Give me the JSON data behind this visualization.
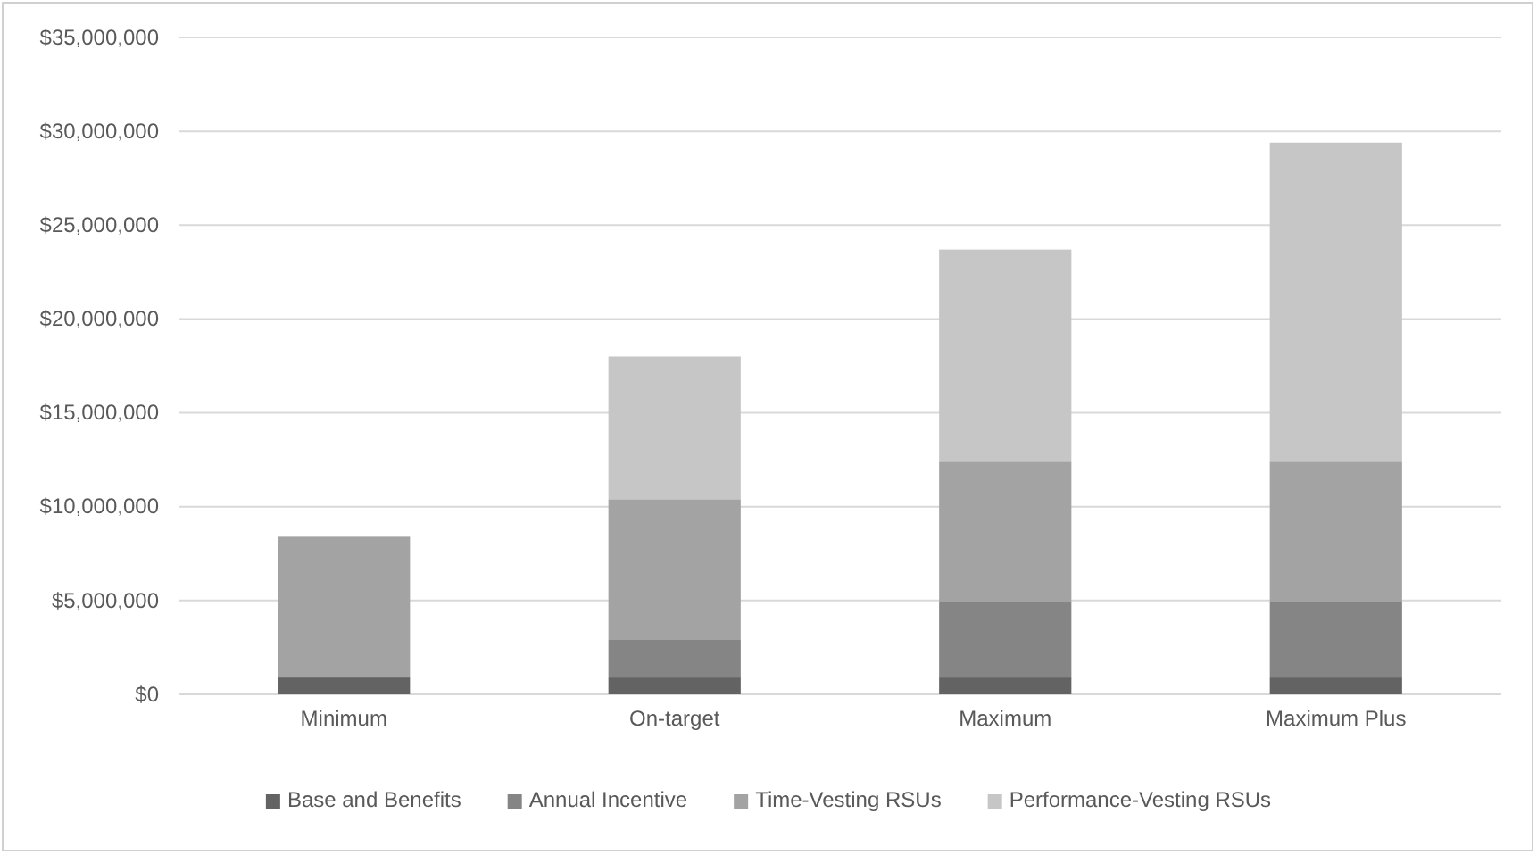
{
  "chart_data": {
    "type": "bar",
    "stacked": true,
    "categories": [
      "Minimum",
      "On-target",
      "Maximum",
      "Maximum Plus"
    ],
    "series": [
      {
        "name": "Base and Benefits",
        "color": "#636363",
        "values": [
          900000,
          900000,
          900000,
          900000
        ]
      },
      {
        "name": "Annual Incentive",
        "color": "#858585",
        "values": [
          0,
          2000000,
          4000000,
          4000000
        ]
      },
      {
        "name": "Time-Vesting RSUs",
        "color": "#a3a3a3",
        "values": [
          7500000,
          7500000,
          7500000,
          7500000
        ]
      },
      {
        "name": "Performance-Vesting RSUs",
        "color": "#c6c6c6",
        "values": [
          0,
          7600000,
          11300000,
          17000000
        ]
      }
    ],
    "ylim": [
      0,
      35000000
    ],
    "yticks": [
      {
        "value": 0,
        "label": "$0"
      },
      {
        "value": 5000000,
        "label": "$5,000,000"
      },
      {
        "value": 10000000,
        "label": "$10,000,000"
      },
      {
        "value": 15000000,
        "label": "$15,000,000"
      },
      {
        "value": 20000000,
        "label": "$20,000,000"
      },
      {
        "value": 25000000,
        "label": "$25,000,000"
      },
      {
        "value": 30000000,
        "label": "$30,000,000"
      },
      {
        "value": 35000000,
        "label": "$35,000,000"
      }
    ],
    "grid": "y",
    "legend": "bottom"
  }
}
